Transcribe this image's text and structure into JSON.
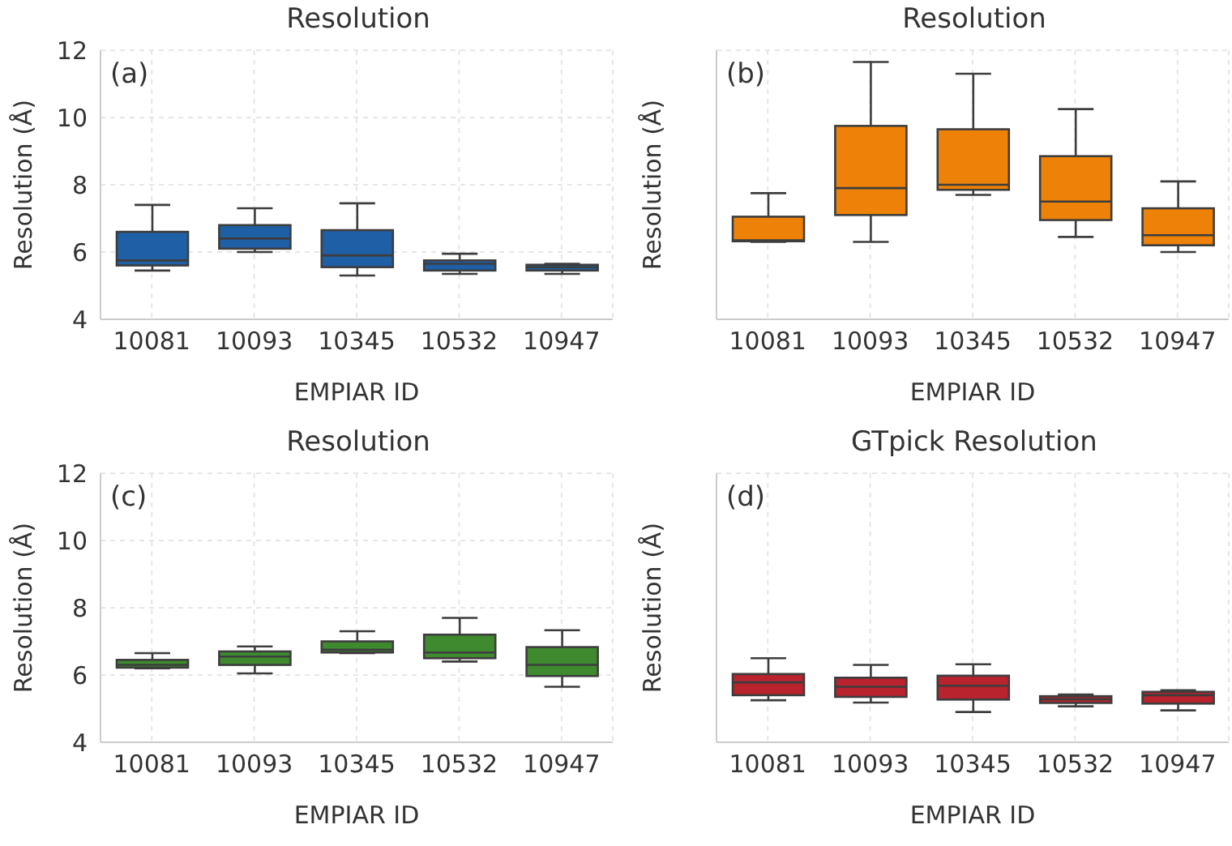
{
  "chart_data": [
    {
      "type": "box",
      "title": "Resolution",
      "xlabel": "EMPIAR ID",
      "ylabel": "Resolution (Å)",
      "categories": [
        "10081",
        "10093",
        "10345",
        "10532",
        "10947"
      ],
      "ylim": [
        4,
        12
      ],
      "yticks": [
        4,
        6,
        8,
        10,
        12
      ],
      "grid": true,
      "annotations": [
        "(a)"
      ],
      "series": [
        {
          "color": "#1f5fa6",
          "boxes": [
            {
              "low": 5.45,
              "q1": 5.6,
              "median": 5.75,
              "q3": 6.6,
              "high": 7.4
            },
            {
              "low": 6.0,
              "q1": 6.1,
              "median": 6.4,
              "q3": 6.8,
              "high": 7.3
            },
            {
              "low": 5.3,
              "q1": 5.55,
              "median": 5.9,
              "q3": 6.65,
              "high": 7.45
            },
            {
              "low": 5.35,
              "q1": 5.45,
              "median": 5.65,
              "q3": 5.75,
              "high": 5.95
            },
            {
              "low": 5.35,
              "q1": 5.45,
              "median": 5.55,
              "q3": 5.62,
              "high": 5.65
            }
          ]
        }
      ]
    },
    {
      "type": "box",
      "title": "Resolution",
      "xlabel": "EMPIAR ID",
      "ylabel": "Resolution (Å)",
      "categories": [
        "10081",
        "10093",
        "10345",
        "10532",
        "10947"
      ],
      "ylim": [
        4,
        12
      ],
      "yticks": [
        4,
        6,
        8,
        10,
        12
      ],
      "grid": true,
      "tick_labels": "x",
      "annotations": [
        "(b)"
      ],
      "series": [
        {
          "color": "#ee8208",
          "boxes": [
            {
              "low": 6.3,
              "q1": 6.32,
              "median": 6.35,
              "q3": 7.05,
              "high": 7.75
            },
            {
              "low": 6.3,
              "q1": 7.1,
              "median": 7.9,
              "q3": 9.75,
              "high": 11.65
            },
            {
              "low": 7.7,
              "q1": 7.85,
              "median": 8.0,
              "q3": 9.65,
              "high": 11.3
            },
            {
              "low": 6.45,
              "q1": 6.95,
              "median": 7.5,
              "q3": 8.85,
              "high": 10.25
            },
            {
              "low": 6.0,
              "q1": 6.2,
              "median": 6.5,
              "q3": 7.3,
              "high": 8.1
            }
          ]
        }
      ]
    },
    {
      "type": "box",
      "title": "Resolution",
      "xlabel": "EMPIAR ID",
      "ylabel": "Resolution (Å)",
      "categories": [
        "10081",
        "10093",
        "10345",
        "10532",
        "10947"
      ],
      "ylim": [
        4,
        12
      ],
      "yticks": [
        4,
        6,
        8,
        10,
        12
      ],
      "grid": true,
      "annotations": [
        "(c)"
      ],
      "series": [
        {
          "color": "#3f8a2e",
          "boxes": [
            {
              "low": 6.2,
              "q1": 6.22,
              "median": 6.3,
              "q3": 6.45,
              "high": 6.65
            },
            {
              "low": 6.05,
              "q1": 6.3,
              "median": 6.55,
              "q3": 6.7,
              "high": 6.85
            },
            {
              "low": 6.65,
              "q1": 6.67,
              "median": 6.75,
              "q3": 7.0,
              "high": 7.3
            },
            {
              "low": 6.4,
              "q1": 6.5,
              "median": 6.67,
              "q3": 7.2,
              "high": 7.7
            },
            {
              "low": 5.65,
              "q1": 5.97,
              "median": 6.3,
              "q3": 6.83,
              "high": 7.33
            }
          ]
        }
      ]
    },
    {
      "type": "box",
      "title": "GTpick Resolution",
      "xlabel": "EMPIAR ID",
      "ylabel": "Resolution (Å)",
      "categories": [
        "10081",
        "10093",
        "10345",
        "10532",
        "10947"
      ],
      "ylim": [
        4,
        12
      ],
      "yticks": [
        4,
        6,
        8,
        10,
        12
      ],
      "grid": true,
      "tick_labels": "x",
      "annotations": [
        "(d)"
      ],
      "series": [
        {
          "color": "#b8232e",
          "boxes": [
            {
              "low": 5.25,
              "q1": 5.4,
              "median": 5.78,
              "q3": 6.03,
              "high": 6.5
            },
            {
              "low": 5.18,
              "q1": 5.35,
              "median": 5.65,
              "q3": 5.92,
              "high": 6.3
            },
            {
              "low": 4.9,
              "q1": 5.27,
              "median": 5.68,
              "q3": 5.98,
              "high": 6.32
            },
            {
              "low": 5.07,
              "q1": 5.17,
              "median": 5.28,
              "q3": 5.37,
              "high": 5.42
            },
            {
              "low": 4.95,
              "q1": 5.15,
              "median": 5.4,
              "q3": 5.5,
              "high": 5.55
            }
          ]
        }
      ]
    }
  ]
}
